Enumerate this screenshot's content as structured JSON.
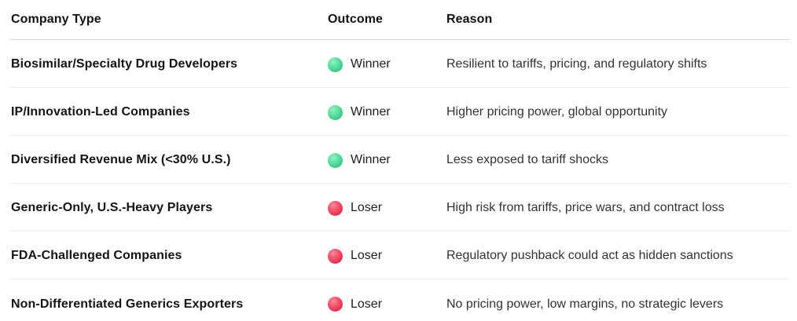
{
  "table": {
    "columns": [
      {
        "label": "Company Type"
      },
      {
        "label": "Outcome"
      },
      {
        "label": "Reason"
      }
    ],
    "rows": [
      {
        "company": "Biosimilar/Specialty Drug Developers",
        "outcome": "Winner",
        "result": "winner",
        "reason": "Resilient to tariffs, pricing, and regulatory shifts"
      },
      {
        "company": "IP/Innovation-Led Companies",
        "outcome": "Winner",
        "result": "winner",
        "reason": "Higher pricing power, global opportunity"
      },
      {
        "company": "Diversified Revenue Mix (<30% U.S.)",
        "outcome": "Winner",
        "result": "winner",
        "reason": "Less exposed to tariff shocks"
      },
      {
        "company": "Generic-Only, U.S.-Heavy Players",
        "outcome": "Loser",
        "result": "loser",
        "reason": "High risk from tariffs, price wars, and contract loss"
      },
      {
        "company": "FDA-Challenged Companies",
        "outcome": "Loser",
        "result": "loser",
        "reason": "Regulatory pushback could act as hidden sanctions"
      },
      {
        "company": "Non-Differentiated Generics Exporters",
        "outcome": "Loser",
        "result": "loser",
        "reason": "No pricing power, low margins, no strategic levers"
      }
    ],
    "icons": {
      "winner": "green-circle-icon",
      "loser": "red-circle-icon"
    },
    "colors": {
      "winner_dot": "#4cd694",
      "loser_dot": "#ee415f",
      "header_text": "#121212",
      "company_text": "#141414",
      "reason_text": "#333333",
      "header_divider": "#d7d7d7",
      "row_divider": "#ededed",
      "background": "#ffffff"
    }
  },
  "chart_data": {
    "type": "table",
    "title": "",
    "columns": [
      "Company Type",
      "Outcome",
      "Reason"
    ],
    "rows": [
      [
        "Biosimilar/Specialty Drug Developers",
        "Winner",
        "Resilient to tariffs, pricing, and regulatory shifts"
      ],
      [
        "IP/Innovation-Led Companies",
        "Winner",
        "Higher pricing power, global opportunity"
      ],
      [
        "Diversified Revenue Mix (<30% U.S.)",
        "Winner",
        "Less exposed to tariff shocks"
      ],
      [
        "Generic-Only, U.S.-Heavy Players",
        "Loser",
        "High risk from tariffs, price wars, and contract loss"
      ],
      [
        "FDA-Challenged Companies",
        "Loser",
        "Regulatory pushback could act as hidden sanctions"
      ],
      [
        "Non-Differentiated Generics Exporters",
        "Loser",
        "No pricing power, low margins, no strategic levers"
      ]
    ],
    "legend": {
      "winner_marker": "green circle",
      "loser_marker": "red circle"
    }
  }
}
